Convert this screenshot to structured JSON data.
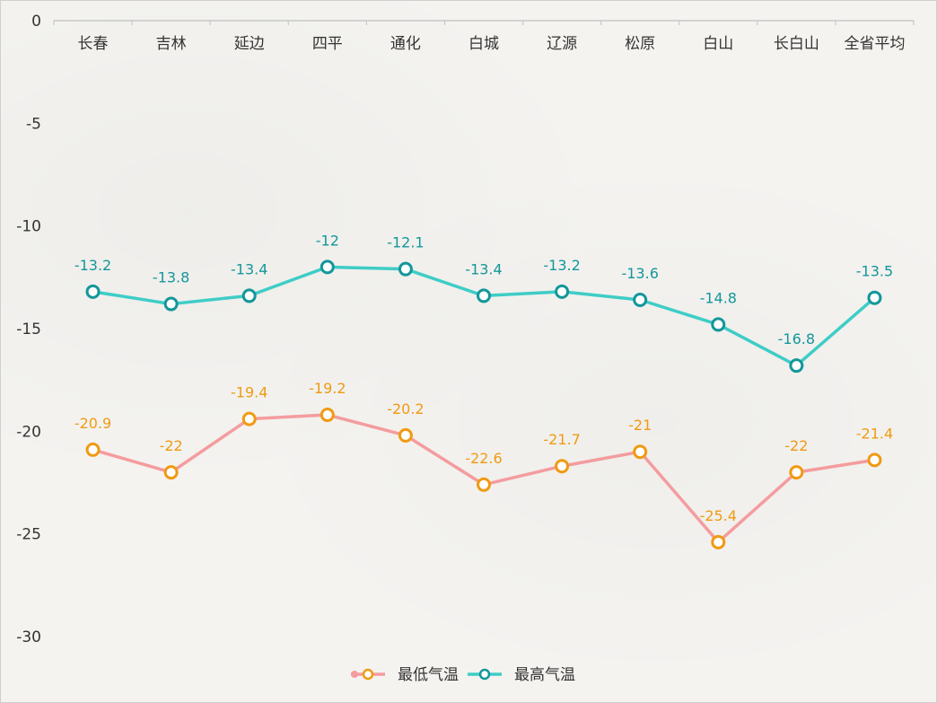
{
  "chart_data": {
    "type": "line",
    "categories": [
      "长春",
      "吉林",
      "延边",
      "四平",
      "通化",
      "白城",
      "辽源",
      "松原",
      "白山",
      "长白山",
      "全省平均"
    ],
    "series": [
      {
        "name": "最低气温",
        "values": [
          -20.9,
          -22,
          -19.4,
          -19.2,
          -20.2,
          -22.6,
          -21.7,
          -21,
          -25.4,
          -22,
          -21.4
        ],
        "line_color": "#f49c9e",
        "marker_color": "#f09a12"
      },
      {
        "name": "最高气温",
        "values": [
          -13.2,
          -13.8,
          -13.4,
          -12,
          -12.1,
          -13.4,
          -13.2,
          -13.6,
          -14.8,
          -16.8,
          -13.5
        ],
        "line_color": "#3ecdc6",
        "marker_color": "#13979a"
      }
    ],
    "yticks": [
      0,
      -5,
      -10,
      -15,
      -20,
      -25,
      -30
    ],
    "ylim": [
      -30,
      0
    ],
    "x_axis_position": "top",
    "legend_position": "bottom-center",
    "grid": false
  }
}
